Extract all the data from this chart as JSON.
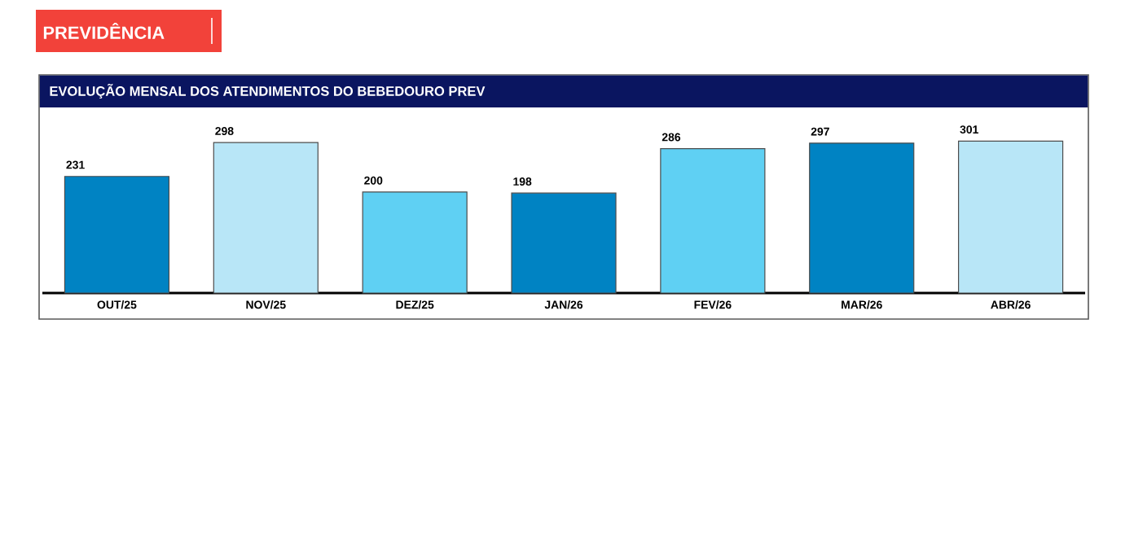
{
  "chart_data": {
    "type": "bar",
    "title": "EVOLUÇÃO MENSAL DOS ATENDIMENTOS DO BEBEDOURO PREV",
    "annotations": [
      "PREVIDÊNCIA"
    ],
    "categories": [
      "OUT/25",
      "NOV/25",
      "DEZ/25",
      "JAN/26",
      "FEV/26",
      "MAR/26",
      "ABR/26"
    ],
    "values": [
      231,
      298,
      200,
      198,
      286,
      297,
      301
    ],
    "colors": [
      "#0083c3",
      "#b8e6f7",
      "#5fd0f3",
      "#0083c3",
      "#5fd0f3",
      "#0083c3",
      "#b8e6f7"
    ],
    "data_labels": true
  }
}
